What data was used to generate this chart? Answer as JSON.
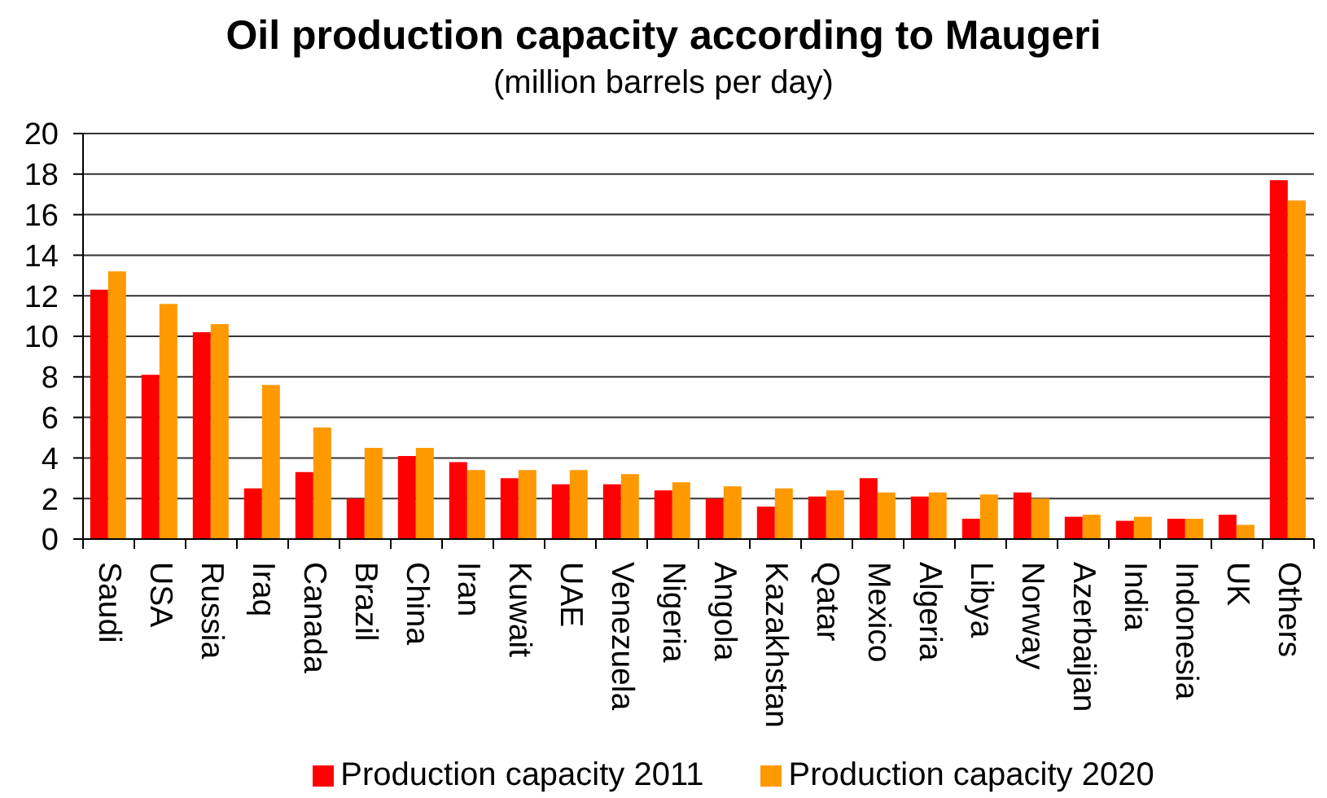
{
  "chart_data": {
    "type": "bar",
    "title": "Oil production capacity according to Maugeri",
    "subtitle": "(million barrels per day)",
    "categories": [
      "Saudi",
      "USA",
      "Russia",
      "Iraq",
      "Canada",
      "Brazil",
      "China",
      "Iran",
      "Kuwait",
      "UAE",
      "Venezuela",
      "Nigeria",
      "Angola",
      "Kazakhstan",
      "Qatar",
      "Mexico",
      "Algeria",
      "Libya",
      "Norway",
      "Azerbaijan",
      "India",
      "Indonesia",
      "UK",
      "Others"
    ],
    "series": [
      {
        "name": "Production capacity 2011",
        "color": "#ff0000",
        "values": [
          12.3,
          8.1,
          10.2,
          2.5,
          3.3,
          2.0,
          4.1,
          3.8,
          3.0,
          2.7,
          2.7,
          2.4,
          2.0,
          1.6,
          2.1,
          3.0,
          2.1,
          1.0,
          2.3,
          1.1,
          0.9,
          1.0,
          1.2,
          17.7
        ]
      },
      {
        "name": "Production capacity 2020",
        "color": "#ff9900",
        "values": [
          13.2,
          11.6,
          10.6,
          7.6,
          5.5,
          4.5,
          4.5,
          3.4,
          3.4,
          3.4,
          3.2,
          2.8,
          2.6,
          2.5,
          2.4,
          2.3,
          2.3,
          2.2,
          2.0,
          1.2,
          1.1,
          1.0,
          0.7,
          16.7
        ]
      }
    ],
    "ylim": [
      0,
      20
    ],
    "yticks": [
      0,
      2,
      4,
      6,
      8,
      10,
      12,
      14,
      16,
      18,
      20
    ],
    "grid": "y",
    "legend": "bottom"
  }
}
